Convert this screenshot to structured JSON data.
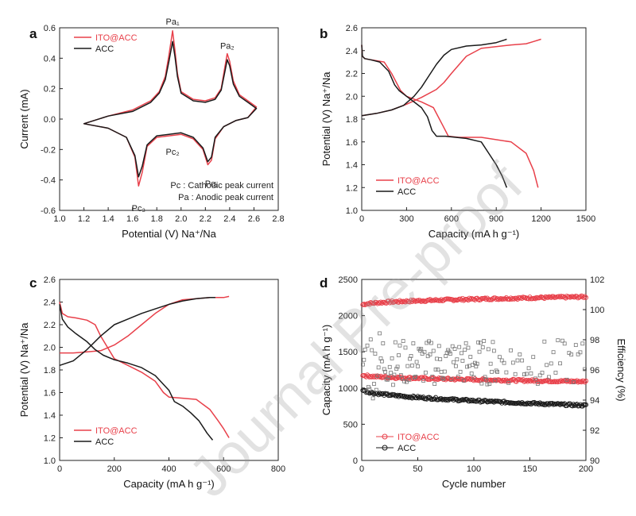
{
  "colors": {
    "ito": "#e8404a",
    "acc": "#1a1a1a",
    "axis": "#222222"
  },
  "watermark": "Journal Pre-proof",
  "chart_data": [
    {
      "id": "a",
      "type": "line",
      "panel_label": "a",
      "xlabel": "Potential (V) Na⁺/Na",
      "ylabel": "Current (mA)",
      "xlim": [
        1.0,
        2.8
      ],
      "ylim": [
        -0.6,
        0.6
      ],
      "xticks": [
        "1.0",
        "1.2",
        "1.4",
        "1.6",
        "1.8",
        "2.0",
        "2.2",
        "2.4",
        "2.6",
        "2.8"
      ],
      "yticks": [
        "-0.6",
        "-0.4",
        "-0.2",
        "0.0",
        "0.2",
        "0.4",
        "0.6"
      ],
      "legend": [
        "ITO@ACC",
        "ACC"
      ],
      "notes": [
        "Pc : Cathodic peak current",
        "Pa : Anodic peak current"
      ],
      "peaks": [
        {
          "label": "Pa₁",
          "x": 1.93,
          "y": 0.57
        },
        {
          "label": "Pa₂",
          "x": 2.38,
          "y": 0.41
        },
        {
          "label": "Pc₂",
          "x": 1.93,
          "y": -0.14
        },
        {
          "label": "Pc₁",
          "x": 2.25,
          "y": -0.35
        },
        {
          "label": "Pc₃",
          "x": 1.65,
          "y": -0.5
        }
      ],
      "series": [
        {
          "name": "ITO@ACC",
          "closed": true,
          "x": [
            1.2,
            1.4,
            1.55,
            1.62,
            1.65,
            1.68,
            1.72,
            1.8,
            1.9,
            2.0,
            2.1,
            2.18,
            2.22,
            2.25,
            2.28,
            2.35,
            2.45,
            2.55,
            2.62,
            2.62,
            2.55,
            2.48,
            2.43,
            2.4,
            2.38,
            2.36,
            2.33,
            2.28,
            2.2,
            2.1,
            2.0,
            1.97,
            1.95,
            1.93,
            1.9,
            1.87,
            1.82,
            1.75,
            1.6,
            1.4,
            1.2
          ],
          "y": [
            -0.03,
            -0.06,
            -0.12,
            -0.25,
            -0.44,
            -0.35,
            -0.18,
            -0.12,
            -0.11,
            -0.1,
            -0.13,
            -0.2,
            -0.3,
            -0.27,
            -0.13,
            -0.05,
            -0.01,
            0.01,
            0.08,
            0.08,
            0.12,
            0.16,
            0.25,
            0.38,
            0.43,
            0.34,
            0.2,
            0.14,
            0.12,
            0.13,
            0.18,
            0.3,
            0.45,
            0.58,
            0.42,
            0.28,
            0.18,
            0.12,
            0.06,
            0.02,
            -0.03
          ]
        },
        {
          "name": "ACC",
          "closed": true,
          "x": [
            1.2,
            1.4,
            1.55,
            1.62,
            1.65,
            1.68,
            1.72,
            1.8,
            1.9,
            2.0,
            2.1,
            2.18,
            2.22,
            2.25,
            2.28,
            2.35,
            2.45,
            2.55,
            2.62,
            2.62,
            2.55,
            2.48,
            2.43,
            2.4,
            2.38,
            2.36,
            2.33,
            2.28,
            2.2,
            2.1,
            2.0,
            1.97,
            1.95,
            1.93,
            1.9,
            1.87,
            1.82,
            1.75,
            1.6,
            1.4,
            1.2
          ],
          "y": [
            -0.03,
            -0.06,
            -0.12,
            -0.24,
            -0.38,
            -0.31,
            -0.17,
            -0.11,
            -0.1,
            -0.09,
            -0.12,
            -0.19,
            -0.28,
            -0.25,
            -0.12,
            -0.05,
            -0.01,
            0.01,
            0.07,
            0.07,
            0.11,
            0.15,
            0.23,
            0.35,
            0.39,
            0.31,
            0.19,
            0.13,
            0.11,
            0.12,
            0.17,
            0.28,
            0.41,
            0.51,
            0.38,
            0.26,
            0.17,
            0.11,
            0.05,
            0.02,
            -0.03
          ]
        }
      ]
    },
    {
      "id": "b",
      "type": "line",
      "panel_label": "b",
      "xlabel": "Capacity (mA h g⁻¹)",
      "ylabel": "Potential (V) Na⁺/Na",
      "xlim": [
        0,
        1500
      ],
      "ylim": [
        1.0,
        2.6
      ],
      "xticks": [
        "0",
        "300",
        "600",
        "900",
        "1200",
        "1500"
      ],
      "yticks": [
        "1.0",
        "1.2",
        "1.4",
        "1.6",
        "1.8",
        "2.0",
        "2.2",
        "2.4",
        "2.6"
      ],
      "legend": [
        "ITO@ACC",
        "ACC"
      ],
      "series": [
        {
          "name": "ITO@ACC discharge",
          "x": [
            0,
            5,
            20,
            60,
            150,
            200,
            260,
            300,
            400,
            480,
            540,
            580,
            650,
            800,
            1000,
            1100,
            1150,
            1180
          ],
          "y": [
            2.45,
            2.35,
            2.33,
            2.32,
            2.3,
            2.2,
            2.05,
            2.0,
            1.95,
            1.9,
            1.75,
            1.65,
            1.64,
            1.64,
            1.6,
            1.5,
            1.35,
            1.2
          ]
        },
        {
          "name": "ITO@ACC charge",
          "x": [
            0,
            100,
            200,
            300,
            400,
            500,
            550,
            600,
            700,
            800,
            1000,
            1100,
            1150,
            1200
          ],
          "y": [
            1.83,
            1.85,
            1.88,
            1.93,
            1.99,
            2.06,
            2.12,
            2.2,
            2.35,
            2.42,
            2.45,
            2.46,
            2.48,
            2.5
          ]
        },
        {
          "name": "ACC discharge",
          "x": [
            0,
            5,
            20,
            60,
            120,
            180,
            220,
            250,
            300,
            350,
            400,
            440,
            470,
            500,
            560,
            700,
            800,
            850,
            900,
            940,
            970
          ],
          "y": [
            2.45,
            2.35,
            2.33,
            2.32,
            2.3,
            2.22,
            2.1,
            2.05,
            2.0,
            1.95,
            1.9,
            1.82,
            1.7,
            1.65,
            1.65,
            1.63,
            1.6,
            1.5,
            1.4,
            1.3,
            1.2
          ]
        },
        {
          "name": "ACC charge",
          "x": [
            0,
            100,
            200,
            280,
            350,
            400,
            450,
            500,
            550,
            600,
            700,
            800,
            900,
            970
          ],
          "y": [
            1.83,
            1.85,
            1.88,
            1.92,
            2.0,
            2.08,
            2.18,
            2.28,
            2.36,
            2.41,
            2.44,
            2.45,
            2.47,
            2.5
          ]
        }
      ]
    },
    {
      "id": "c",
      "type": "line",
      "panel_label": "c",
      "xlabel": "Capacity (mA h g⁻¹)",
      "ylabel": "Potential (V) Na⁺/Na",
      "xlim": [
        0,
        800
      ],
      "ylim": [
        1.0,
        2.6
      ],
      "xticks": [
        "0",
        "200",
        "400",
        "600",
        "800"
      ],
      "yticks": [
        "1.0",
        "1.2",
        "1.4",
        "1.6",
        "1.8",
        "2.0",
        "2.2",
        "2.4",
        "2.6"
      ],
      "legend": [
        "ITO@ACC",
        "ACC"
      ],
      "series": [
        {
          "name": "ITO@ACC discharge",
          "x": [
            0,
            10,
            30,
            60,
            100,
            130,
            150,
            200,
            250,
            300,
            350,
            380,
            400,
            450,
            500,
            550,
            580,
            600,
            620
          ],
          "y": [
            2.4,
            2.3,
            2.27,
            2.26,
            2.24,
            2.2,
            2.1,
            1.9,
            1.84,
            1.78,
            1.7,
            1.6,
            1.56,
            1.55,
            1.54,
            1.45,
            1.35,
            1.28,
            1.2
          ]
        },
        {
          "name": "ITO@ACC charge",
          "x": [
            0,
            50,
            100,
            150,
            200,
            250,
            300,
            350,
            400,
            450,
            500,
            550,
            600,
            620
          ],
          "y": [
            1.95,
            1.95,
            1.96,
            1.97,
            2.02,
            2.1,
            2.2,
            2.3,
            2.38,
            2.42,
            2.43,
            2.44,
            2.44,
            2.45
          ]
        },
        {
          "name": "ACC discharge",
          "x": [
            0,
            10,
            30,
            60,
            100,
            130,
            160,
            200,
            250,
            300,
            350,
            400,
            420,
            450,
            480,
            510,
            540,
            560
          ],
          "y": [
            2.38,
            2.25,
            2.18,
            2.12,
            2.05,
            1.98,
            1.93,
            1.89,
            1.86,
            1.82,
            1.75,
            1.62,
            1.52,
            1.48,
            1.42,
            1.35,
            1.24,
            1.18
          ]
        },
        {
          "name": "ACC charge",
          "x": [
            0,
            50,
            100,
            150,
            200,
            250,
            300,
            350,
            400,
            450,
            500,
            550,
            570
          ],
          "y": [
            1.84,
            1.88,
            1.98,
            2.1,
            2.2,
            2.25,
            2.3,
            2.34,
            2.38,
            2.41,
            2.43,
            2.44,
            2.44
          ]
        }
      ]
    },
    {
      "id": "d",
      "type": "scatter",
      "panel_label": "d",
      "xlabel": "Cycle number",
      "ylabel": "Capacity (mA h g⁻¹)",
      "y2label": "Efficiency (%)",
      "xlim": [
        0,
        200
      ],
      "ylim": [
        0,
        2500
      ],
      "y2lim": [
        90,
        102
      ],
      "xticks": [
        "0",
        "50",
        "100",
        "150",
        "200"
      ],
      "yticks": [
        "0",
        "500",
        "1000",
        "1500",
        "2000",
        "2500"
      ],
      "y2ticks": [
        "90",
        "92",
        "94",
        "96",
        "98",
        "100",
        "102"
      ],
      "legend": [
        "ITO@ACC",
        "ACC"
      ],
      "series": [
        {
          "name": "ITO@ACC charge capacity",
          "x_range": [
            1,
            200
          ],
          "y_start": 2150,
          "y_end": 2260
        },
        {
          "name": "ITO@ACC discharge capacity",
          "x_range": [
            1,
            200
          ],
          "y_start": 1180,
          "y_end": 1090
        },
        {
          "name": "ACC capacity",
          "x_range": [
            1,
            200
          ],
          "y_start": 980,
          "y_end": 760
        },
        {
          "name": "Efficiency",
          "x_range": [
            1,
            200
          ],
          "y_center": 96.5,
          "y_spread": 1.5
        }
      ]
    }
  ]
}
